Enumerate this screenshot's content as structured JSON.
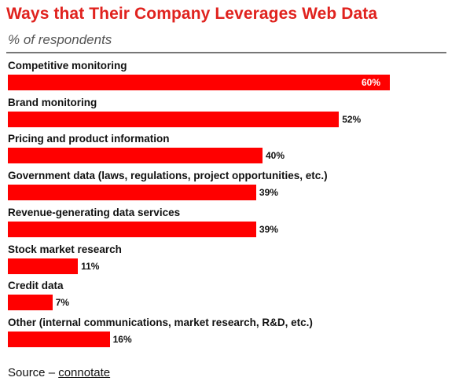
{
  "chart_data": {
    "type": "bar",
    "orientation": "horizontal",
    "title": "Ways that Their Company Leverages Web Data",
    "subtitle": "% of respondents",
    "categories": [
      "Competitive monitoring",
      "Brand monitoring",
      "Pricing and product information",
      "Government data (laws, regulations, project opportunities, etc.)",
      "Revenue-generating data services",
      "Stock market research",
      "Credit data",
      "Other (internal communications, market research, R&D, etc.)"
    ],
    "values": [
      60,
      52,
      40,
      39,
      39,
      11,
      7,
      16
    ],
    "value_labels": [
      "60%",
      "52%",
      "40%",
      "39%",
      "39%",
      "11%",
      "7%",
      "16%"
    ],
    "xlabel": "",
    "ylabel": "",
    "grid": false,
    "bar_color": "#ff0000",
    "title_color": "#e0221e"
  },
  "source": {
    "prefix": "Source – ",
    "link": "connotate"
  }
}
